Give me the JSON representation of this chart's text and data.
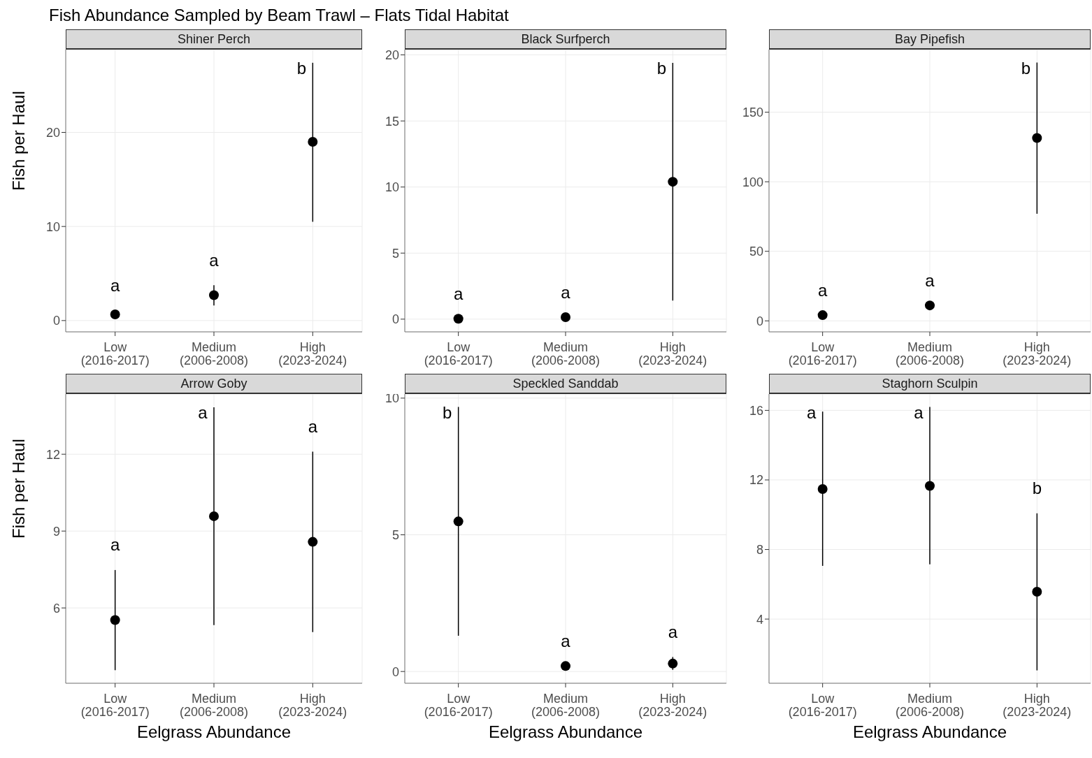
{
  "chart_data": [
    {
      "type": "scatter",
      "title": "Shiner Perch",
      "ylabel": "Fish per Haul",
      "categories": [
        "Low\n(2016-2017)",
        "Medium\n(2006-2008)",
        "High\n(2023-2024)"
      ],
      "values": [
        0.66,
        2.7,
        19.0
      ],
      "errors": [
        [
          0.25,
          1.1
        ],
        [
          1.6,
          3.75
        ],
        [
          10.5,
          27.4
        ]
      ],
      "color": "#000000",
      "marker": "circle",
      "ylim": [
        -1.2,
        28.8
      ],
      "yticks": [
        0,
        10,
        20
      ],
      "grid": true,
      "annotations": [
        "Fish Abundance Sampled by Beam Trawl – Flats Tidal Habitat",
        "a",
        "a",
        "b"
      ]
    },
    {
      "type": "scatter",
      "title": "Black Surfperch",
      "categories": [
        "Low\n(2016-2017)",
        "Medium\n(2006-2008)",
        "High\n(2023-2024)"
      ],
      "values": [
        0.03,
        0.15,
        10.4
      ],
      "errors": [
        null,
        null,
        [
          1.4,
          19.4
        ]
      ],
      "color": "#000000",
      "marker": "circle",
      "ylim": [
        -0.96,
        20.4
      ],
      "yticks": [
        0,
        5,
        10,
        15,
        20
      ],
      "grid": true,
      "annotations": [
        "a",
        "a",
        "b"
      ]
    },
    {
      "type": "scatter",
      "title": "Bay Pipefish",
      "categories": [
        "Low\n(2016-2017)",
        "Medium\n(2006-2008)",
        "High\n(2023-2024)"
      ],
      "values": [
        4.1,
        11.1,
        131.5
      ],
      "errors": [
        null,
        null,
        [
          77,
          185.7
        ]
      ],
      "color": "#000000",
      "marker": "circle",
      "ylim": [
        -7.9,
        195
      ],
      "yticks": [
        0,
        50,
        100,
        150
      ],
      "grid": true,
      "annotations": [
        "a",
        "a",
        "b"
      ]
    },
    {
      "type": "scatter",
      "title": "Arrow Goby",
      "ylabel": "Fish per Haul",
      "xlabel": "Eelgrass Abundance",
      "categories": [
        "Low\n(2016-2017)",
        "Medium\n(2006-2008)",
        "High\n(2023-2024)"
      ],
      "values": [
        5.53,
        9.58,
        8.58
      ],
      "errors": [
        [
          3.57,
          7.48
        ],
        [
          5.33,
          13.83
        ],
        [
          5.06,
          12.1
        ]
      ],
      "color": "#000000",
      "marker": "circle",
      "ylim": [
        3.06,
        14.35
      ],
      "yticks": [
        6,
        9,
        12
      ],
      "grid": true,
      "annotations": [
        "a",
        "a",
        "a"
      ]
    },
    {
      "type": "scatter",
      "title": "Speckled Sanddab",
      "xlabel": "Eelgrass Abundance",
      "categories": [
        "Low\n(2016-2017)",
        "Medium\n(2006-2008)",
        "High\n(2023-2024)"
      ],
      "values": [
        5.49,
        0.2,
        0.29
      ],
      "errors": [
        [
          1.31,
          9.68
        ],
        null,
        [
          0.06,
          0.53
        ]
      ],
      "color": "#000000",
      "marker": "circle",
      "ylim": [
        -0.43,
        10.15
      ],
      "yticks": [
        0,
        5,
        10
      ],
      "grid": true,
      "annotations": [
        "b",
        "a",
        "a"
      ]
    },
    {
      "type": "scatter",
      "title": "Staghorn Sculpin",
      "xlabel": "Eelgrass Abundance",
      "categories": [
        "Low\n(2016-2017)",
        "Medium\n(2006-2008)",
        "High\n(2023-2024)"
      ],
      "values": [
        11.48,
        11.66,
        5.57
      ],
      "errors": [
        [
          7.06,
          15.93
        ],
        [
          7.15,
          16.2
        ],
        [
          1.05,
          10.08
        ]
      ],
      "color": "#000000",
      "marker": "circle",
      "ylim": [
        0.31,
        16.94
      ],
      "yticks": [
        4,
        8,
        12,
        16
      ],
      "grid": true,
      "annotations": [
        "a",
        "a",
        "b"
      ]
    }
  ]
}
